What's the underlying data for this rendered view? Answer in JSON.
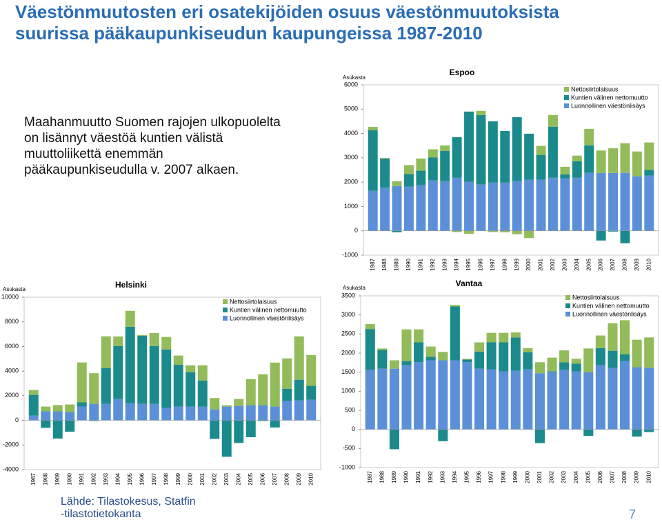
{
  "header": {
    "title": "Väestönmuutosten eri osatekijöiden osuus väestönmuutoksista suurissa pääkaupunkiseudun kaupungeissa 1987-2010"
  },
  "text": "Maahanmuutto Suomen rajojen ulkopuolelta on lisännyt väestöä kuntien välistä muuttoliikettä enemmän pääkaupunkiseudulla v. 2007 alkaen.",
  "source": [
    "Lähde: Tilastokesus, Statfin",
    "-tilastotietokanta"
  ],
  "page_number": "7",
  "chart_data": [
    {
      "type": "stacked_bar",
      "title": "Espoo",
      "y_label": "Asukasta",
      "categories": [
        "1987",
        "1988",
        "1989",
        "1990",
        "1991",
        "1992",
        "1993",
        "1994",
        "1995",
        "1996",
        "1997",
        "1998",
        "1999",
        "2000",
        "2001",
        "2002",
        "2003",
        "2004",
        "2005",
        "2006",
        "2007",
        "2008",
        "2009",
        "2010"
      ],
      "ylim": [
        -1000,
        6000
      ],
      "yticks": [
        -1000,
        0,
        1000,
        2000,
        3000,
        4000,
        5000,
        6000
      ],
      "series": [
        {
          "name": "Nettosiirtolaisuus",
          "color": "#92bb5a",
          "values": [
            140,
            20,
            200,
            370,
            500,
            340,
            230,
            -50,
            -120,
            170,
            -50,
            -60,
            -140,
            -300,
            370,
            480,
            310,
            230,
            680,
            920,
            1010,
            1220,
            1020,
            1130
          ]
        },
        {
          "name": "Kuntien välinen nettomuutto",
          "color": "#1b8a8c",
          "values": [
            2490,
            1190,
            -60,
            520,
            600,
            940,
            1240,
            1670,
            2890,
            2860,
            2520,
            2120,
            2630,
            1890,
            1020,
            2100,
            170,
            680,
            1130,
            -400,
            -30,
            -510,
            0,
            230
          ]
        },
        {
          "name": "Luonnollinen väestönlisäys",
          "color": "#5b90d8",
          "values": [
            1640,
            1780,
            1840,
            1810,
            1870,
            2070,
            2040,
            2180,
            2010,
            1900,
            1980,
            1980,
            2040,
            2100,
            2100,
            2180,
            2150,
            2180,
            2380,
            2380,
            2380,
            2380,
            2240,
            2270
          ]
        }
      ]
    },
    {
      "type": "stacked_bar",
      "title": "Helsinki",
      "y_label": "Asukasta",
      "categories": [
        "1987",
        "1988",
        "1989",
        "1990",
        "1991",
        "1992",
        "1993",
        "1994",
        "1995",
        "1996",
        "1997",
        "1998",
        "1999",
        "2000",
        "2001",
        "2002",
        "2003",
        "2004",
        "2005",
        "2006",
        "2007",
        "2008",
        "2009",
        "2010"
      ],
      "ylim": [
        -4000,
        10000
      ],
      "yticks": [
        -4000,
        -2000,
        0,
        2000,
        4000,
        6000,
        8000,
        10000
      ],
      "series": [
        {
          "name": "Nettosiirtolaisuus",
          "color": "#92bb5a",
          "values": [
            390,
            390,
            510,
            620,
            3240,
            2490,
            2570,
            780,
            1290,
            60,
            1060,
            1010,
            730,
            560,
            1230,
            920,
            100,
            560,
            2120,
            2510,
            3570,
            2460,
            3520,
            2510
          ]
        },
        {
          "name": "Kuntien välinen nettomuutto",
          "color": "#1b8a8c",
          "values": [
            1680,
            -610,
            -1480,
            -920,
            340,
            -50,
            2910,
            4300,
            6200,
            5530,
            4690,
            4750,
            3410,
            2790,
            2120,
            -1510,
            -2960,
            -1840,
            -1370,
            -60,
            -580,
            1010,
            1680,
            1120
          ]
        },
        {
          "name": "Luonnollinen väestönlisäys",
          "color": "#5b90d8",
          "values": [
            390,
            730,
            730,
            670,
            1120,
            1340,
            1340,
            1730,
            1400,
            1340,
            1340,
            1010,
            1120,
            1120,
            1120,
            890,
            1120,
            1170,
            1230,
            1230,
            1120,
            1560,
            1620,
            1680
          ]
        }
      ]
    },
    {
      "type": "stacked_bar",
      "title": "Vantaa",
      "y_label": "Asukasta",
      "categories": [
        "1987",
        "1988",
        "1989",
        "1990",
        "1991",
        "1992",
        "1993",
        "1994",
        "1995",
        "1996",
        "1997",
        "1998",
        "1999",
        "2000",
        "2001",
        "2002",
        "2003",
        "2004",
        "2005",
        "2006",
        "2007",
        "2008",
        "2009",
        "2010"
      ],
      "ylim": [
        -1000,
        3500
      ],
      "yticks": [
        -1000,
        -500,
        0,
        500,
        1000,
        1500,
        2000,
        2500,
        3000,
        3500
      ],
      "series": [
        {
          "name": "Nettosiirtolaisuus",
          "color": "#92bb5a",
          "values": [
            130,
            40,
            220,
            830,
            340,
            270,
            220,
            40,
            20,
            240,
            250,
            250,
            130,
            110,
            290,
            360,
            310,
            130,
            620,
            330,
            720,
            890,
            720,
            800
          ]
        },
        {
          "name": "Kuntien välinen nettomuutto",
          "color": "#1b8a8c",
          "values": [
            1070,
            490,
            -520,
            110,
            520,
            90,
            -310,
            1410,
            70,
            450,
            710,
            760,
            870,
            450,
            -360,
            20,
            200,
            200,
            -170,
            450,
            450,
            180,
            -190,
            -70
          ]
        },
        {
          "name": "Luonnollinen väestönlisäys",
          "color": "#5b90d8",
          "values": [
            1560,
            1590,
            1590,
            1680,
            1760,
            1810,
            1810,
            1810,
            1760,
            1590,
            1570,
            1520,
            1540,
            1570,
            1470,
            1500,
            1560,
            1520,
            1500,
            1680,
            1610,
            1790,
            1630,
            1610
          ]
        }
      ]
    }
  ]
}
